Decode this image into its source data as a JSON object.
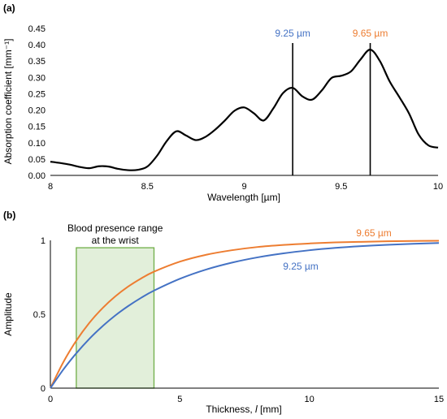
{
  "chart_data": [
    {
      "type": "line",
      "panel_label": "(a)",
      "title": "",
      "xlabel": "Wavelength [µm]",
      "ylabel": "Absorption coefficient [mm⁻¹]",
      "xlim": [
        8,
        10
      ],
      "ylim": [
        0,
        0.45
      ],
      "xticks": [
        "8",
        "8.5",
        "9",
        "9.5",
        "10"
      ],
      "yticks": [
        "0.00",
        "0.05",
        "0.10",
        "0.15",
        "0.20",
        "0.25",
        "0.30",
        "0.35",
        "0.40",
        "0.45"
      ],
      "grid": false,
      "series": [
        {
          "color": "#000000",
          "x": [
            8.0,
            8.05,
            8.1,
            8.15,
            8.2,
            8.25,
            8.3,
            8.35,
            8.4,
            8.45,
            8.5,
            8.55,
            8.6,
            8.65,
            8.7,
            8.75,
            8.8,
            8.85,
            8.9,
            8.95,
            9.0,
            9.05,
            9.1,
            9.15,
            9.2,
            9.25,
            9.3,
            9.35,
            9.4,
            9.45,
            9.5,
            9.55,
            9.6,
            9.65,
            9.7,
            9.75,
            9.8,
            9.85,
            9.9,
            9.95,
            10.0
          ],
          "y": [
            0.042,
            0.038,
            0.033,
            0.026,
            0.022,
            0.028,
            0.027,
            0.02,
            0.016,
            0.017,
            0.027,
            0.06,
            0.105,
            0.135,
            0.122,
            0.108,
            0.118,
            0.14,
            0.168,
            0.198,
            0.208,
            0.19,
            0.168,
            0.205,
            0.252,
            0.268,
            0.242,
            0.232,
            0.26,
            0.298,
            0.305,
            0.318,
            0.355,
            0.385,
            0.35,
            0.288,
            0.24,
            0.19,
            0.125,
            0.092,
            0.085
          ]
        }
      ],
      "vlines": [
        {
          "x": 9.25,
          "label": "9.25 µm",
          "label_color": "#4472c4"
        },
        {
          "x": 9.65,
          "label": "9.65 µm",
          "label_color": "#ed7d31"
        }
      ]
    },
    {
      "type": "line",
      "panel_label": "(b)",
      "title": "",
      "xlabel_prefix": "Thickness, ",
      "xlabel_var": "l",
      "xlabel_suffix": " [mm]",
      "ylabel": "Amplitude",
      "xlim": [
        0,
        15
      ],
      "ylim": [
        0,
        1
      ],
      "xticks": [
        "0",
        "5",
        "10",
        "15"
      ],
      "yticks": [
        "0",
        "0.5",
        "1"
      ],
      "grid": false,
      "series": [
        {
          "name": "9.65 µm",
          "color": "#ed7d31",
          "x": [
            0,
            0.5,
            1,
            1.5,
            2,
            2.5,
            3,
            3.5,
            4,
            5,
            6,
            7,
            8,
            9,
            10,
            11,
            12,
            13,
            14,
            15
          ],
          "y": [
            0,
            0.176,
            0.321,
            0.441,
            0.539,
            0.62,
            0.687,
            0.742,
            0.788,
            0.856,
            0.902,
            0.933,
            0.955,
            0.969,
            0.979,
            0.986,
            0.99,
            0.994,
            0.996,
            0.997
          ]
        },
        {
          "name": "9.25 µm",
          "color": "#4472c4",
          "x": [
            0,
            0.5,
            1,
            1.5,
            2,
            2.5,
            3,
            3.5,
            4,
            5,
            6,
            7,
            8,
            9,
            10,
            11,
            12,
            13,
            14,
            15
          ],
          "y": [
            0,
            0.126,
            0.236,
            0.333,
            0.417,
            0.491,
            0.555,
            0.611,
            0.66,
            0.74,
            0.802,
            0.849,
            0.885,
            0.912,
            0.933,
            0.949,
            0.961,
            0.97,
            0.977,
            0.982
          ]
        }
      ],
      "region": {
        "label_line1": "Blood presence range",
        "label_line2": "at the wrist",
        "x": [
          1,
          4
        ],
        "y": [
          0,
          0.95
        ],
        "fill": "#e2efda",
        "stroke": "#70ad47"
      }
    }
  ]
}
